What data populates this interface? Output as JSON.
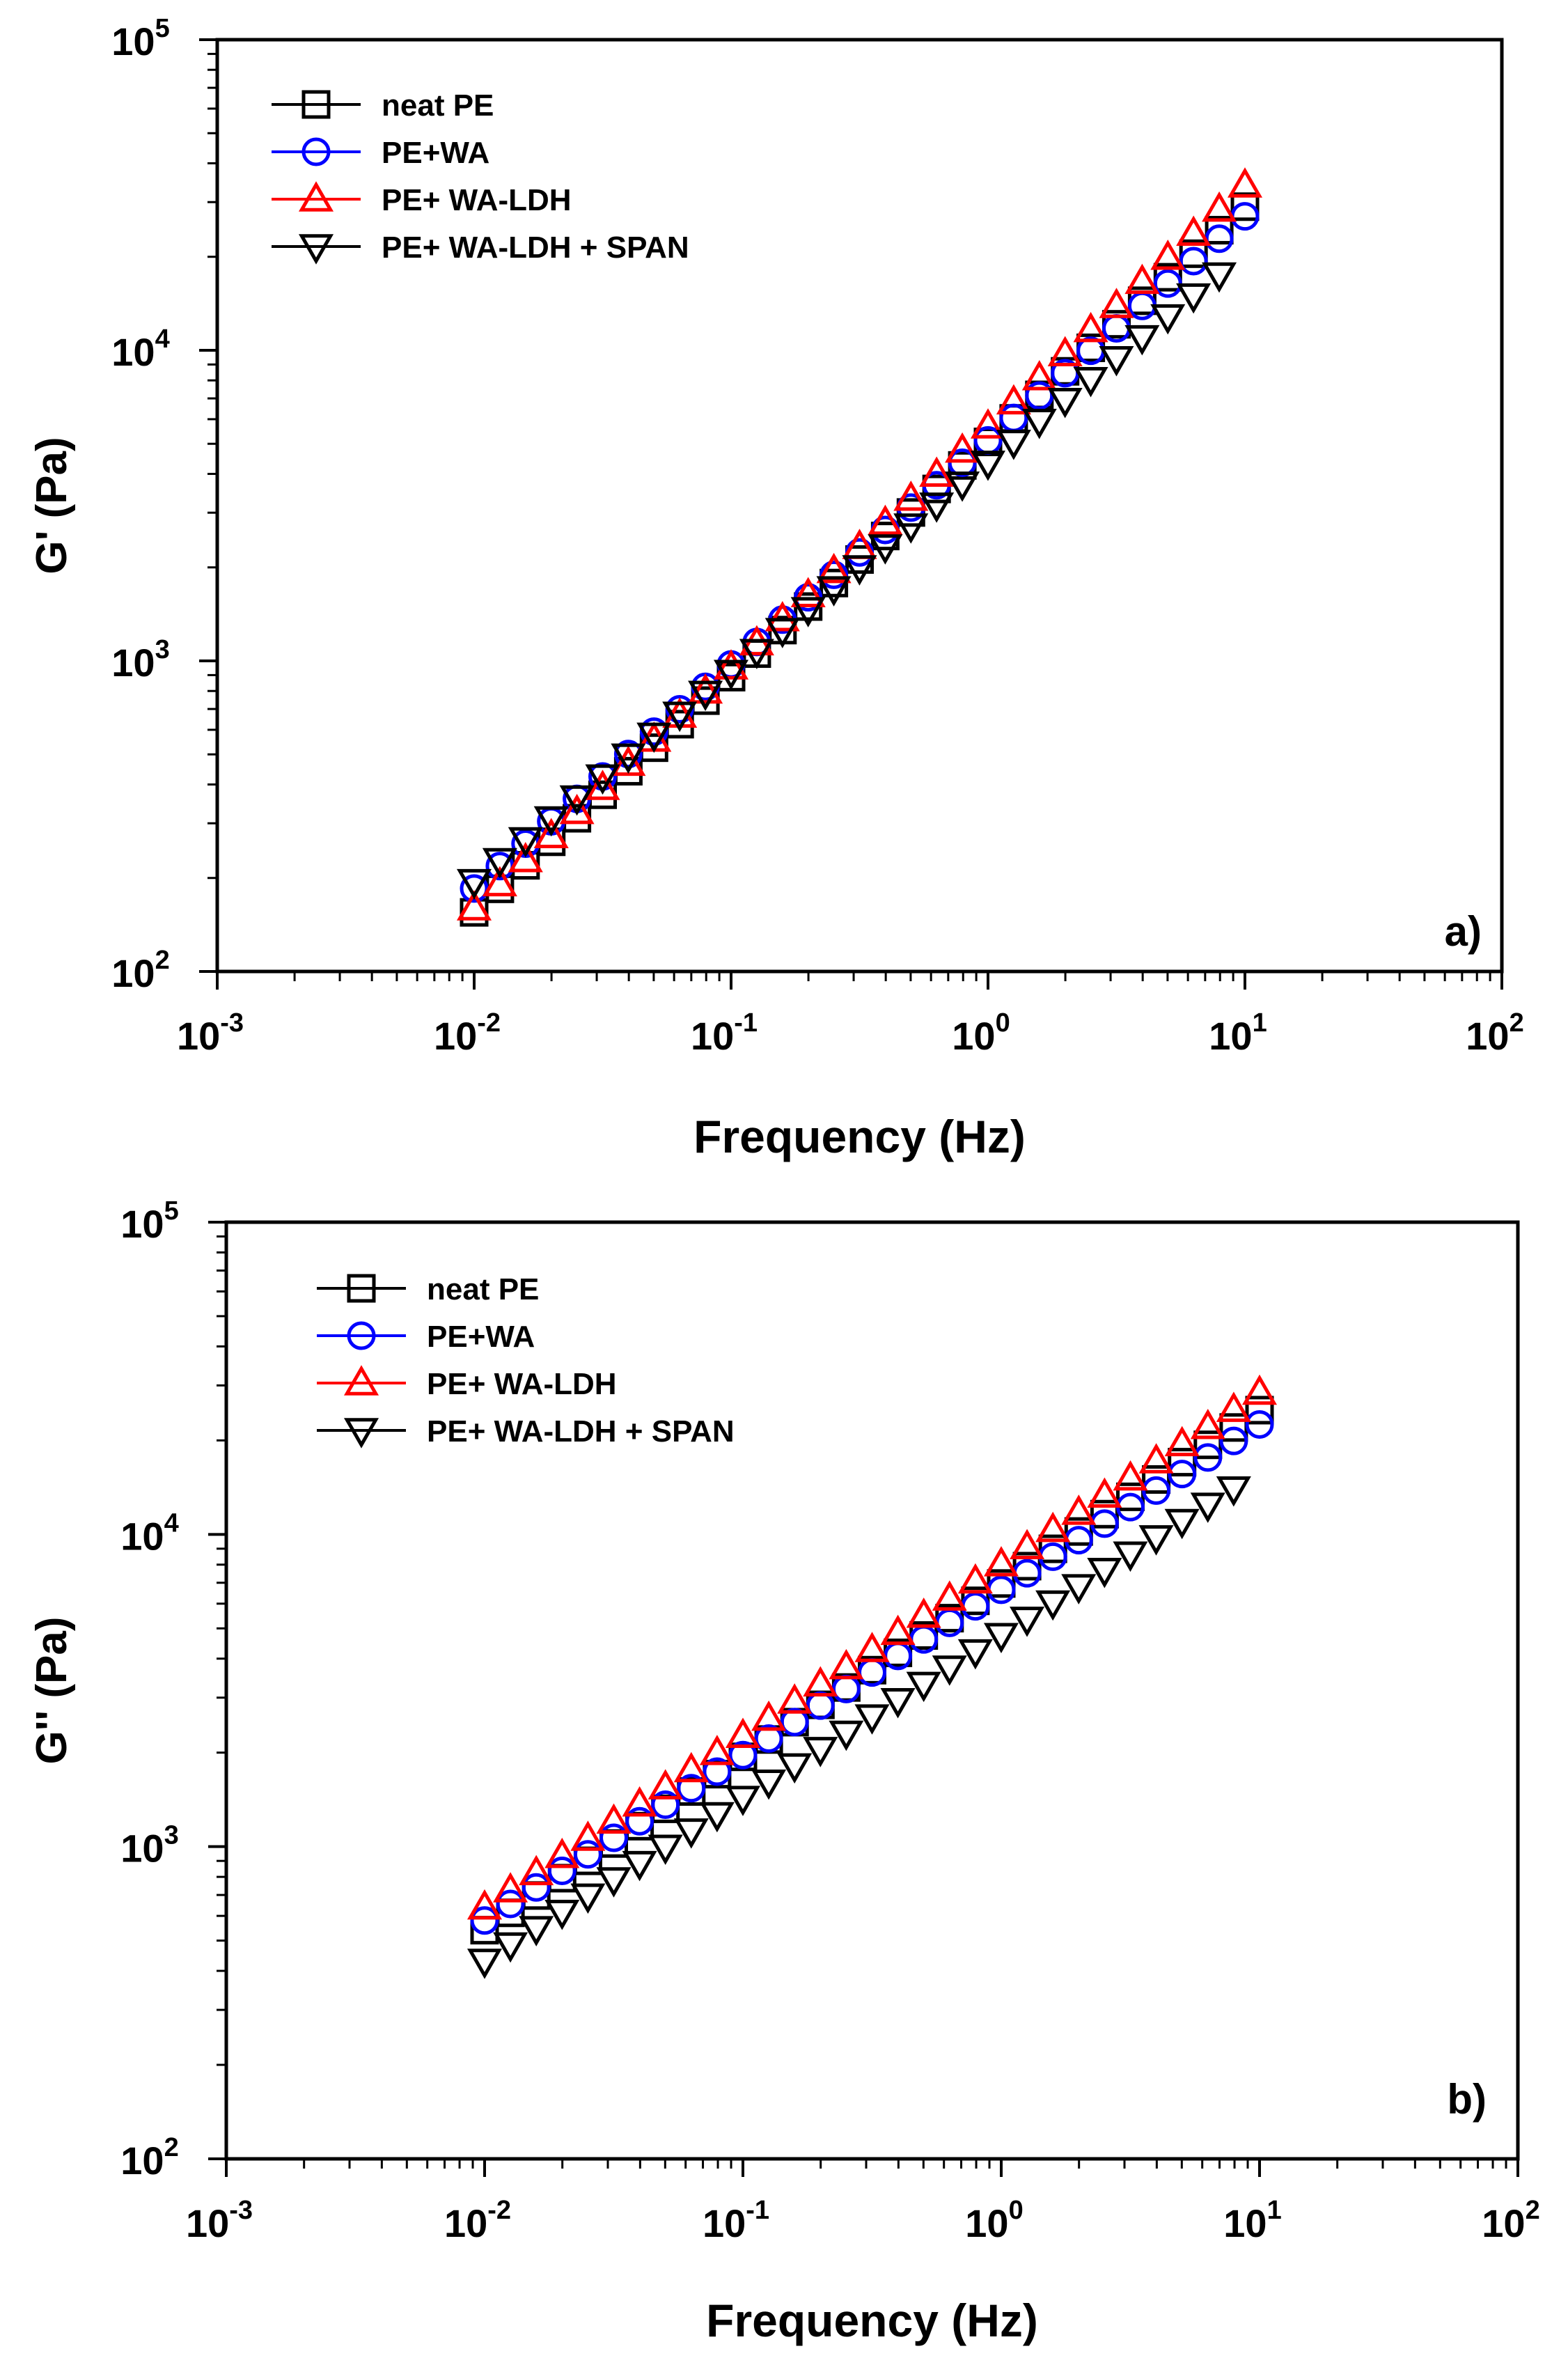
{
  "chart_data": [
    {
      "type": "scatter",
      "panel_label": "a)",
      "xlabel": "Frequency (Hz)",
      "ylabel": "G' (Pa)",
      "xscale": "log",
      "yscale": "log",
      "xlim": [
        0.001,
        100
      ],
      "ylim": [
        100,
        100000
      ],
      "x_tick_labels": [
        {
          "base": "10",
          "exp": "-3"
        },
        {
          "base": "10",
          "exp": "-2"
        },
        {
          "base": "10",
          "exp": "-1"
        },
        {
          "base": "10",
          "exp": "0"
        },
        {
          "base": "10",
          "exp": "1"
        },
        {
          "base": "10",
          "exp": "2"
        }
      ],
      "y_tick_labels": [
        {
          "base": "10",
          "exp": "2"
        },
        {
          "base": "10",
          "exp": "3"
        },
        {
          "base": "10",
          "exp": "4"
        },
        {
          "base": "10",
          "exp": "5"
        }
      ],
      "legend_position": "top-left",
      "series": [
        {
          "name": "neat PE",
          "marker": "square",
          "color": "#000000",
          "x_start": 0.01,
          "x_end": 10,
          "points": 31,
          "y_start": 155,
          "y_end": 29000
        },
        {
          "name": "PE+WA",
          "marker": "circle",
          "color": "#0000ff",
          "x_start": 0.01,
          "x_end": 10,
          "points": 31,
          "y_start": 185,
          "y_end": 27000
        },
        {
          "name": "PE+ WA-LDH",
          "marker": "triangle-up",
          "color": "#ff0000",
          "x_start": 0.01,
          "x_end": 10,
          "points": 31,
          "y_start": 160,
          "y_end": 34000
        },
        {
          "name": "PE+ WA-LDH + SPAN",
          "marker": "triangle-down",
          "color": "#000000",
          "x_start": 0.01,
          "x_end": 7.94,
          "points": 30,
          "y_start": 195,
          "y_end": 17500
        }
      ]
    },
    {
      "type": "scatter",
      "panel_label": "b)",
      "xlabel": "Frequency (Hz)",
      "ylabel": "G'' (Pa)",
      "xscale": "log",
      "yscale": "log",
      "xlim": [
        0.001,
        100
      ],
      "ylim": [
        100,
        100000
      ],
      "x_tick_labels": [
        {
          "base": "10",
          "exp": "-3"
        },
        {
          "base": "10",
          "exp": "-2"
        },
        {
          "base": "10",
          "exp": "-1"
        },
        {
          "base": "10",
          "exp": "0"
        },
        {
          "base": "10",
          "exp": "1"
        },
        {
          "base": "10",
          "exp": "2"
        }
      ],
      "y_tick_labels": [
        {
          "base": "10",
          "exp": "2"
        },
        {
          "base": "10",
          "exp": "3"
        },
        {
          "base": "10",
          "exp": "4"
        },
        {
          "base": "10",
          "exp": "5"
        }
      ],
      "legend_position": "top-left",
      "series": [
        {
          "name": "neat PE",
          "marker": "square",
          "color": "#000000",
          "x_start": 0.01,
          "x_end": 10,
          "points": 31,
          "y_start": 540,
          "y_end": 25000
        },
        {
          "name": "PE+WA",
          "marker": "circle",
          "color": "#0000ff",
          "x_start": 0.01,
          "x_end": 10,
          "points": 31,
          "y_start": 580,
          "y_end": 22500
        },
        {
          "name": "PE+ WA-LDH",
          "marker": "triangle-up",
          "color": "#ff0000",
          "x_start": 0.01,
          "x_end": 10,
          "points": 31,
          "y_start": 640,
          "y_end": 28500
        },
        {
          "name": "PE+ WA-LDH + SPAN",
          "marker": "triangle-down",
          "color": "#000000",
          "x_start": 0.01,
          "x_end": 7.94,
          "points": 30,
          "y_start": 430,
          "y_end": 14000
        }
      ]
    }
  ]
}
